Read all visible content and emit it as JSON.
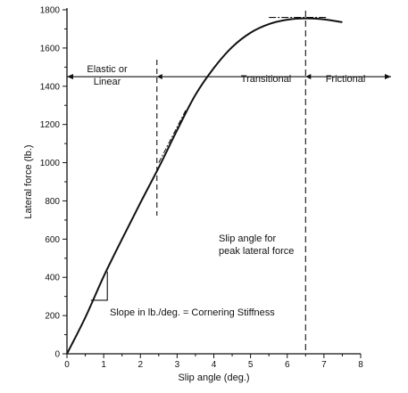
{
  "chart_data": {
    "type": "line",
    "title": "",
    "xlabel": "Slip angle (deg.)",
    "ylabel": "Lateral force (lb.)",
    "xlim": [
      0,
      8
    ],
    "ylim": [
      0,
      1800
    ],
    "x_ticks": [
      "0",
      "1",
      "2",
      "3",
      "4",
      "5",
      "6",
      "7",
      "8"
    ],
    "y_ticks": [
      "0",
      "200",
      "400",
      "600",
      "800",
      "1000",
      "1200",
      "1400",
      "1600",
      "1800"
    ],
    "grid": false,
    "series": [
      {
        "name": "",
        "x": [
          0,
          0.5,
          1,
          1.5,
          2,
          2.5,
          3,
          3.5,
          4,
          4.5,
          5,
          5.5,
          6,
          6.5,
          7,
          7.5
        ],
        "y": [
          0,
          190,
          405,
          600,
          790,
          975,
          1170,
          1355,
          1495,
          1605,
          1680,
          1725,
          1748,
          1755,
          1750,
          1735
        ]
      }
    ],
    "regions": {
      "elastic_line1": "Elastic or",
      "elastic_line2": "Linear",
      "transitional": "Transitional",
      "frictional": "Frictional"
    },
    "annotations": {
      "peak_line1": "Slip angle for",
      "peak_line2": "peak lateral force",
      "slope": "Slope in lb./deg. = Cornering Stiffness"
    },
    "reference_lines": {
      "elastic_limit_x": 2.45,
      "peak_x": 6.5,
      "region_arrow_y": 1450,
      "peak_tangent_y": 1760,
      "peak_tangent_x": [
        5.5,
        7.1
      ],
      "linear_tangent_x": [
        2.5,
        3.25
      ],
      "linear_tangent_y": [
        1000,
        1280
      ],
      "slope_triangle_x": [
        0.65,
        1.1
      ],
      "slope_triangle_y": [
        280,
        430
      ]
    },
    "colors": {
      "ink": "#111111",
      "background": "#ffffff"
    }
  }
}
